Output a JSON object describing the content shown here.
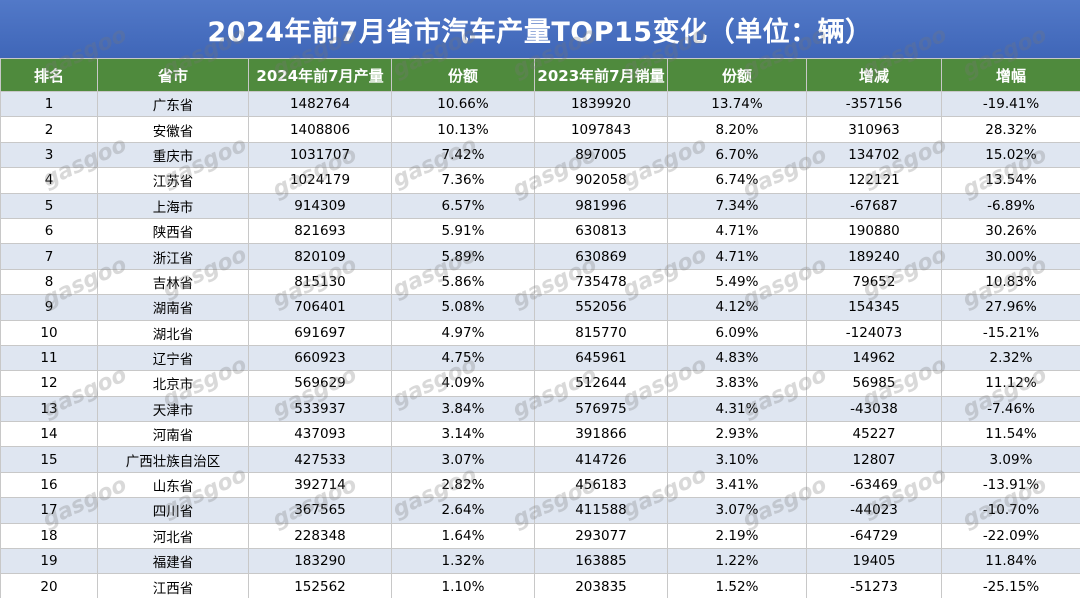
{
  "title": "2024年前7月省市汽车产量TOP15变化（单位：辆）",
  "colors": {
    "title_bg": "#4a72c2",
    "header_bg": "#4f8a3d",
    "row_alt_bg": "#dfe6f1"
  },
  "table": {
    "headers": [
      "排名",
      "省市",
      "2024年前7月产量",
      "份额",
      "2023年前7月销量",
      "份额",
      "增减",
      "增幅"
    ],
    "rows": [
      [
        "1",
        "广东省",
        "1482764",
        "10.66%",
        "1839920",
        "13.74%",
        "-357156",
        "-19.41%"
      ],
      [
        "2",
        "安徽省",
        "1408806",
        "10.13%",
        "1097843",
        "8.20%",
        "310963",
        "28.32%"
      ],
      [
        "3",
        "重庆市",
        "1031707",
        "7.42%",
        "897005",
        "6.70%",
        "134702",
        "15.02%"
      ],
      [
        "4",
        "江苏省",
        "1024179",
        "7.36%",
        "902058",
        "6.74%",
        "122121",
        "13.54%"
      ],
      [
        "5",
        "上海市",
        "914309",
        "6.57%",
        "981996",
        "7.34%",
        "-67687",
        "-6.89%"
      ],
      [
        "6",
        "陕西省",
        "821693",
        "5.91%",
        "630813",
        "4.71%",
        "190880",
        "30.26%"
      ],
      [
        "7",
        "浙江省",
        "820109",
        "5.89%",
        "630869",
        "4.71%",
        "189240",
        "30.00%"
      ],
      [
        "8",
        "吉林省",
        "815130",
        "5.86%",
        "735478",
        "5.49%",
        "79652",
        "10.83%"
      ],
      [
        "9",
        "湖南省",
        "706401",
        "5.08%",
        "552056",
        "4.12%",
        "154345",
        "27.96%"
      ],
      [
        "10",
        "湖北省",
        "691697",
        "4.97%",
        "815770",
        "6.09%",
        "-124073",
        "-15.21%"
      ],
      [
        "11",
        "辽宁省",
        "660923",
        "4.75%",
        "645961",
        "4.83%",
        "14962",
        "2.32%"
      ],
      [
        "12",
        "北京市",
        "569629",
        "4.09%",
        "512644",
        "3.83%",
        "56985",
        "11.12%"
      ],
      [
        "13",
        "天津市",
        "533937",
        "3.84%",
        "576975",
        "4.31%",
        "-43038",
        "-7.46%"
      ],
      [
        "14",
        "河南省",
        "437093",
        "3.14%",
        "391866",
        "2.93%",
        "45227",
        "11.54%"
      ],
      [
        "15",
        "广西壮族自治区",
        "427533",
        "3.07%",
        "414726",
        "3.10%",
        "12807",
        "3.09%"
      ],
      [
        "16",
        "山东省",
        "392714",
        "2.82%",
        "456183",
        "3.41%",
        "-63469",
        "-13.91%"
      ],
      [
        "17",
        "四川省",
        "367565",
        "2.64%",
        "411588",
        "3.07%",
        "-44023",
        "-10.70%"
      ],
      [
        "18",
        "河北省",
        "228348",
        "1.64%",
        "293077",
        "2.19%",
        "-64729",
        "-22.09%"
      ],
      [
        "19",
        "福建省",
        "183290",
        "1.32%",
        "163885",
        "1.22%",
        "19405",
        "11.84%"
      ],
      [
        "20",
        "江西省",
        "152562",
        "1.10%",
        "203835",
        "1.52%",
        "-51273",
        "-25.15%"
      ]
    ]
  },
  "watermark": {
    "text": "gasgoo"
  }
}
